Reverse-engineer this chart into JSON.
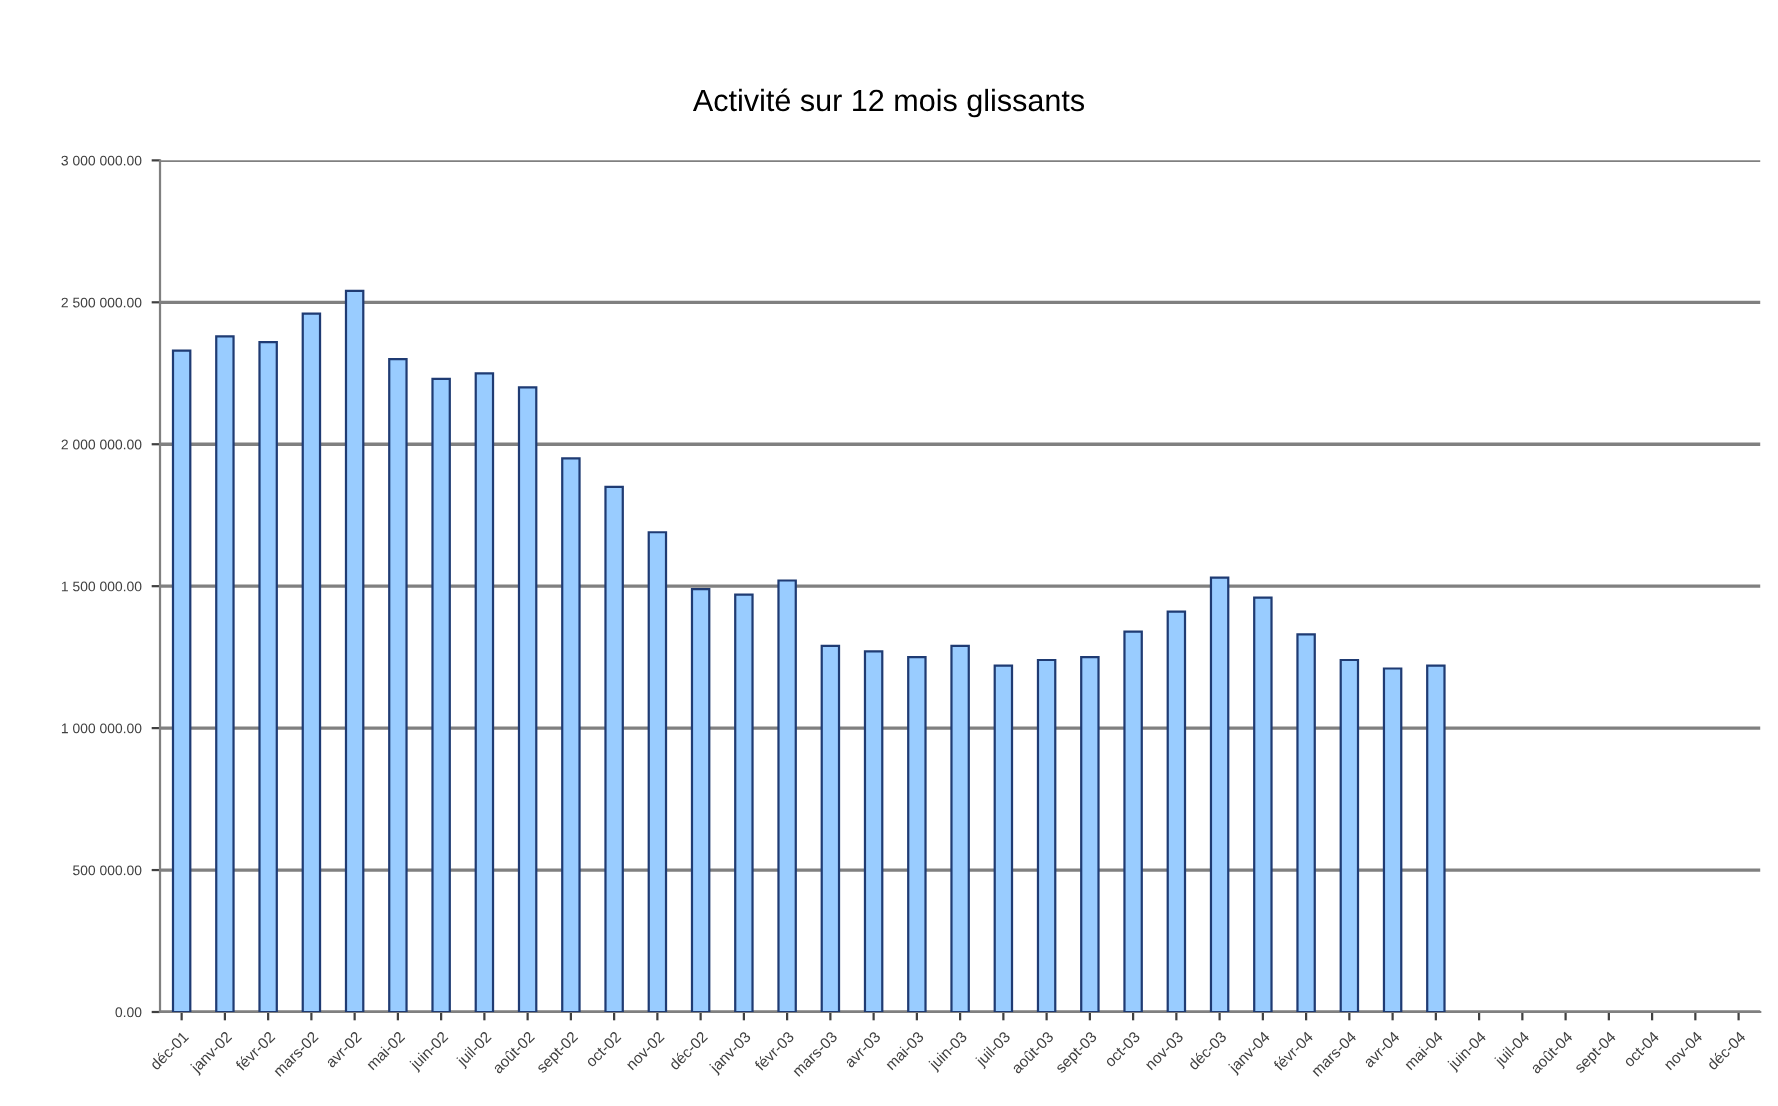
{
  "chart_data": {
    "type": "bar",
    "title": "Activité sur 12 mois glissants",
    "categories": [
      "déc-01",
      "janv-02",
      "févr-02",
      "mars-02",
      "avr-02",
      "mai-02",
      "juin-02",
      "juil-02",
      "août-02",
      "sept-02",
      "oct-02",
      "nov-02",
      "déc-02",
      "janv-03",
      "févr-03",
      "mars-03",
      "avr-03",
      "mai-03",
      "juin-03",
      "juil-03",
      "août-03",
      "sept-03",
      "oct-03",
      "nov-03",
      "déc-03",
      "janv-04",
      "févr-04",
      "mars-04",
      "avr-04",
      "mai-04",
      "juin-04",
      "juil-04",
      "août-04",
      "sept-04",
      "oct-04",
      "nov-04",
      "déc-04"
    ],
    "values": [
      2330000,
      2380000,
      2360000,
      2460000,
      2540000,
      2300000,
      2230000,
      2250000,
      2200000,
      1950000,
      1850000,
      1690000,
      1490000,
      1470000,
      1520000,
      1290000,
      1270000,
      1250000,
      1290000,
      1220000,
      1240000,
      1250000,
      1340000,
      1410000,
      1530000,
      1460000,
      1330000,
      1240000,
      1210000,
      1220000,
      null,
      null,
      null,
      null,
      null,
      null,
      null
    ],
    "color": "#99ccff",
    "ylim": [
      0,
      3000000
    ],
    "yticks": [
      {
        "value": 0,
        "label": "0.00"
      },
      {
        "value": 500000,
        "label": "500 000.00"
      },
      {
        "value": 1000000,
        "label": "1 000 000.00"
      },
      {
        "value": 1500000,
        "label": "1 500 000.00"
      },
      {
        "value": 2000000,
        "label": "2 000 000.00"
      },
      {
        "value": 2500000,
        "label": "2 500 000.00"
      },
      {
        "value": 3000000,
        "label": "3 000 000.00"
      }
    ],
    "grid": "y"
  }
}
